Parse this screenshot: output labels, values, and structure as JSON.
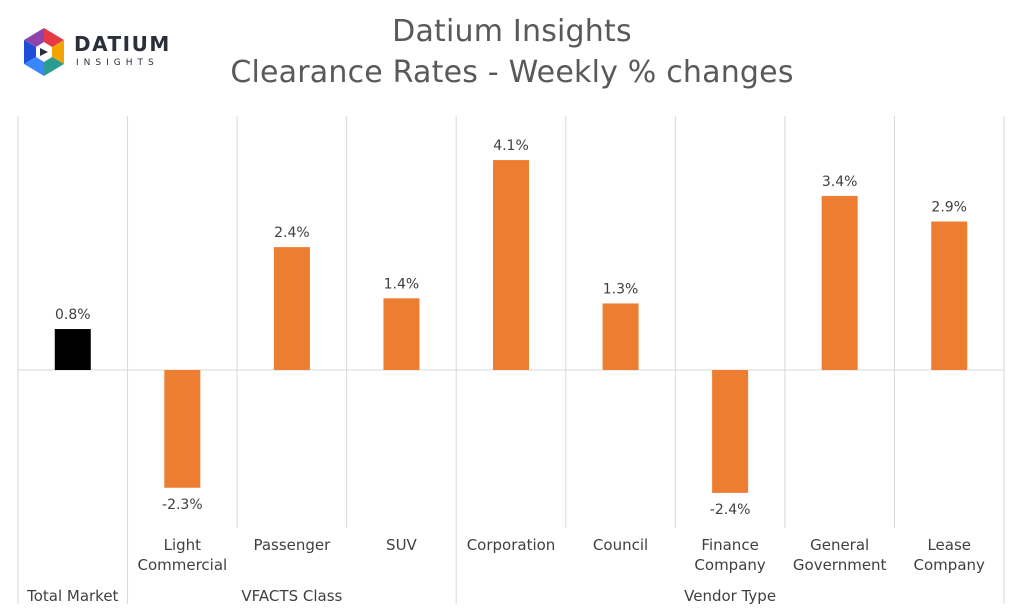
{
  "header": {
    "title": "Datium Insights",
    "subtitle": "Clearance Rates - Weekly % changes"
  },
  "logo": {
    "icon": "datium-hexagon-logo-icon",
    "word": "DATIUM",
    "sub": "INSIGHTS"
  },
  "colors": {
    "total_bar": "#000000",
    "segment_bar": "#ED7D31",
    "grid": "#D9D9D9",
    "text": "#404040"
  },
  "chart_data": {
    "type": "bar",
    "categories": [
      [
        "Total Market"
      ],
      [
        "Light",
        "Commercial"
      ],
      [
        "Passenger"
      ],
      [
        "SUV"
      ],
      [
        "Corporation"
      ],
      [
        "Council"
      ],
      [
        "Finance",
        "Company"
      ],
      [
        "General",
        "Government"
      ],
      [
        "Lease",
        "Company"
      ]
    ],
    "values": [
      0.8,
      -2.3,
      2.4,
      1.4,
      4.1,
      1.3,
      -2.4,
      3.4,
      2.9
    ],
    "data_labels": [
      "0.8%",
      "-2.3%",
      "2.4%",
      "1.4%",
      "4.1%",
      "1.3%",
      "-2.4%",
      "3.4%",
      "2.9%"
    ],
    "groups": [
      {
        "label": "",
        "start": 0,
        "end": 0
      },
      {
        "label": "VFACTS Class",
        "start": 1,
        "end": 3
      },
      {
        "label": "Vendor Type",
        "start": 4,
        "end": 8
      }
    ],
    "ylim": [
      -3,
      5
    ],
    "grid": false,
    "legend": "none"
  }
}
